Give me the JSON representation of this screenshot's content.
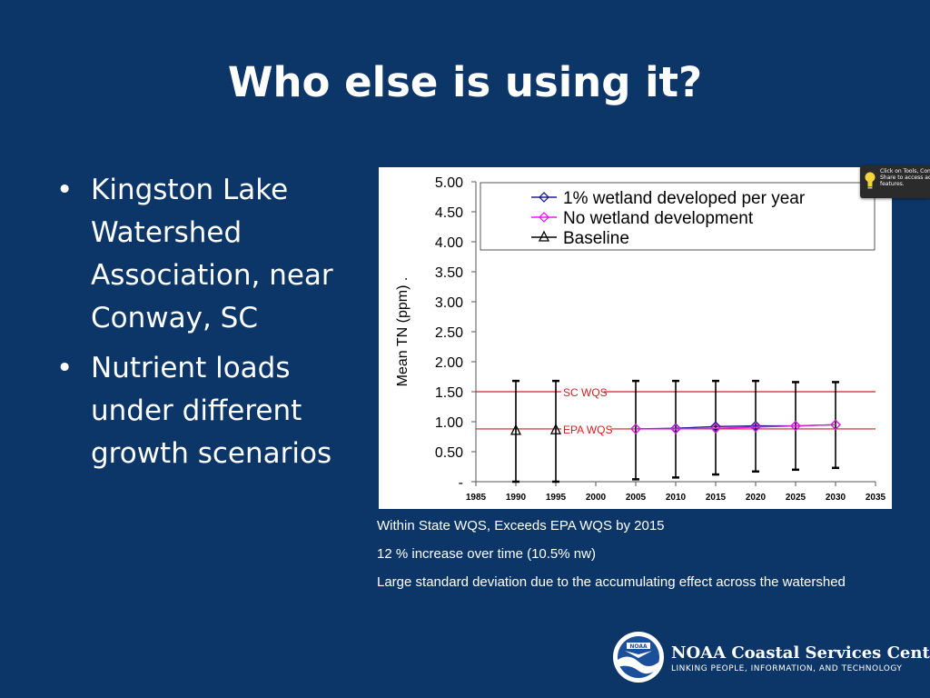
{
  "slide": {
    "title": "Who else is using it?",
    "bullets": [
      "Kingston Lake Watershed Association, near Conway, SC",
      "Nutrient loads under different growth scenarios"
    ],
    "bullet_glyph": "•"
  },
  "chart_data": {
    "type": "line",
    "ylabel": "Mean TN (ppm) .",
    "xlabel": "",
    "title": "",
    "xlim": [
      1985,
      2035
    ],
    "ylim": [
      0,
      5
    ],
    "x_ticks": [
      "1985",
      "1990",
      "1995",
      "2000",
      "2005",
      "2010",
      "2015",
      "2020",
      "2025",
      "2030",
      "2035"
    ],
    "x_tick_values": [
      1985,
      1990,
      1995,
      2000,
      2005,
      2010,
      2015,
      2020,
      2025,
      2030,
      2035
    ],
    "y_ticks": [
      "-",
      "0.50",
      "1.00",
      "1.50",
      "2.00",
      "2.50",
      "3.00",
      "3.50",
      "4.00",
      "4.50",
      "5.00"
    ],
    "y_tick_values": [
      0,
      0.5,
      1,
      1.5,
      2,
      2.5,
      3,
      3.5,
      4,
      4.5,
      5
    ],
    "legend_position": "top",
    "series": [
      {
        "name": "1% wetland developed per year",
        "marker": "diamond",
        "color": "#1f1f8f",
        "x": [
          2005,
          2010,
          2015,
          2020,
          2025,
          2030
        ],
        "y": [
          0.88,
          0.89,
          0.92,
          0.93,
          0.93,
          0.95
        ]
      },
      {
        "name": "No wetland development",
        "marker": "diamond",
        "color": "#e020e0",
        "x": [
          2005,
          2010,
          2015,
          2020,
          2025,
          2030
        ],
        "y": [
          0.88,
          0.88,
          0.89,
          0.91,
          0.93,
          0.95
        ]
      },
      {
        "name": "Baseline",
        "marker": "triangle",
        "color": "#000000",
        "x": [
          1990,
          1995
        ],
        "y": [
          0.85,
          0.86
        ]
      }
    ],
    "error_bars": [
      {
        "x": 1990,
        "low": 0.0,
        "high": 1.68
      },
      {
        "x": 1995,
        "low": 0.0,
        "high": 1.68
      },
      {
        "x": 2005,
        "low": 0.04,
        "high": 1.68
      },
      {
        "x": 2010,
        "low": 0.07,
        "high": 1.68
      },
      {
        "x": 2015,
        "low": 0.12,
        "high": 1.68
      },
      {
        "x": 2020,
        "low": 0.17,
        "high": 1.68
      },
      {
        "x": 2025,
        "low": 0.2,
        "high": 1.66
      },
      {
        "x": 2030,
        "low": 0.23,
        "high": 1.66
      }
    ],
    "reference_lines": [
      {
        "label": "SC WQS",
        "y": 1.5,
        "color": "#d02020"
      },
      {
        "label": "EPA WQS",
        "y": 0.88,
        "color": "#d02020"
      }
    ],
    "grid": false
  },
  "captions": [
    "Within State WQS, Exceeds EPA WQS by 2015",
    "12 % increase over time (10.5% nw)",
    "Large standard deviation due to the accumulating effect across the watershed"
  ],
  "tooltip": {
    "icon": "lightbulb-icon",
    "text": "Click on Tools, Con Share to access ac features."
  },
  "footer": {
    "logo_icon": "noaa-logo-icon",
    "logo_text": "NOAA",
    "org_name": "NOAA Coastal Services Center",
    "tagline": "LINKING PEOPLE, INFORMATION, AND TECHNOLOGY"
  }
}
